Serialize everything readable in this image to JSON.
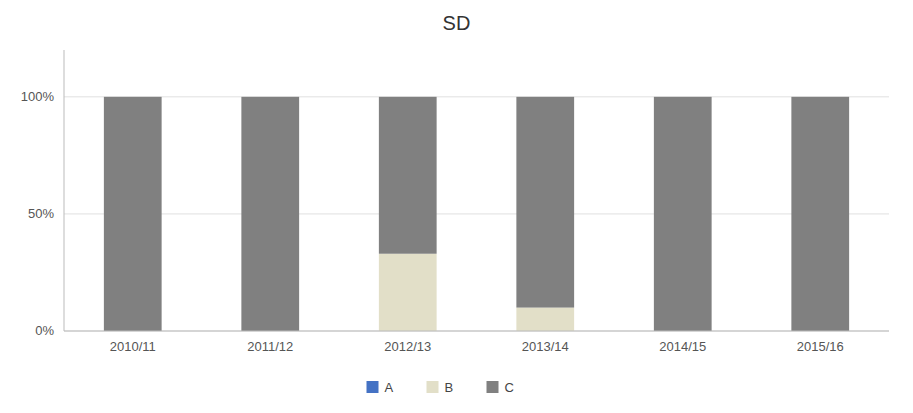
{
  "chart_data": {
    "type": "bar",
    "stacked": true,
    "title": "SD",
    "categories": [
      "2010/11",
      "2011/12",
      "2012/13",
      "2013/14",
      "2014/15",
      "2015/16"
    ],
    "series": [
      {
        "name": "A",
        "color": "#4472c4",
        "values": [
          0,
          0,
          0,
          0,
          0,
          0
        ]
      },
      {
        "name": "B",
        "color": "#e2dfc8",
        "values": [
          0,
          0,
          33,
          10,
          0,
          0
        ]
      },
      {
        "name": "C",
        "color": "#808080",
        "values": [
          100,
          100,
          67,
          90,
          100,
          100
        ]
      }
    ],
    "ylim": [
      0,
      120
    ],
    "yticks": [
      {
        "value": 0,
        "label": "0%"
      },
      {
        "value": 50,
        "label": "50%"
      },
      {
        "value": 100,
        "label": "100%"
      }
    ],
    "grid": true,
    "legend": "bottom"
  }
}
